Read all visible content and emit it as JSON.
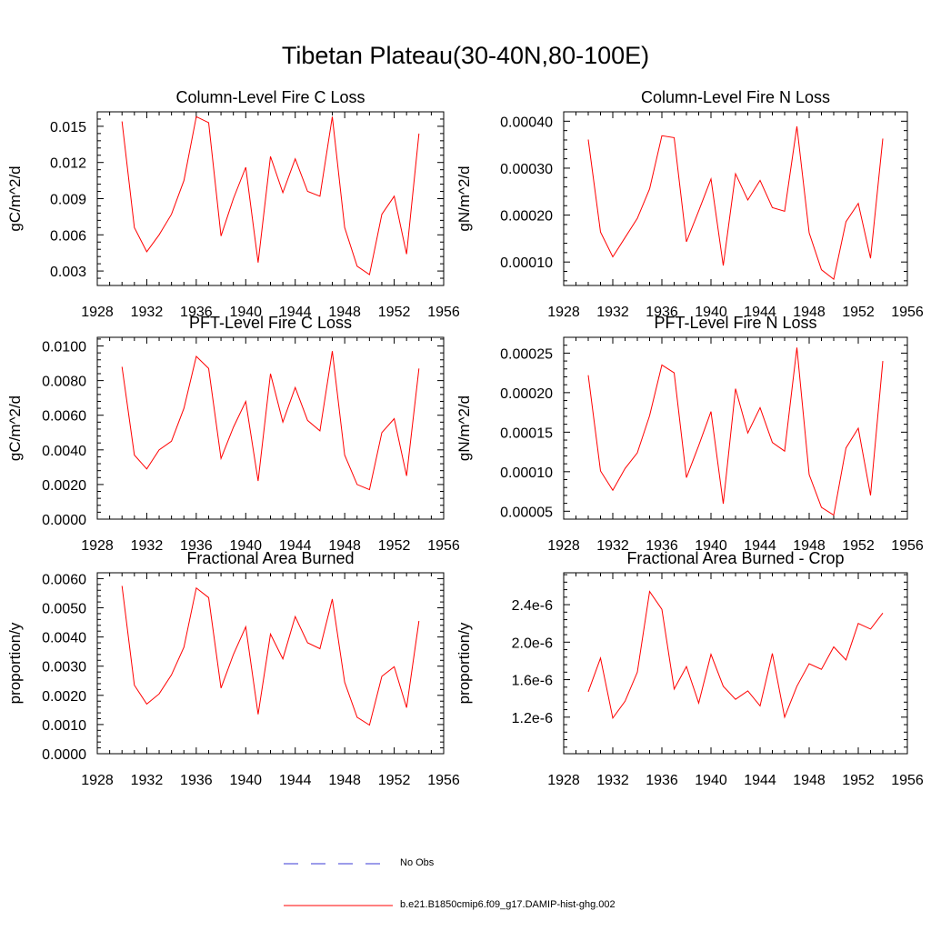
{
  "page": {
    "title": "Tibetan Plateau(30-40N,80-100E)"
  },
  "legend": {
    "items": [
      {
        "label": "No Obs",
        "color": "#3a3ad6",
        "style": "dashed"
      },
      {
        "label": "b.e21.B1850cmip6.f09_g17.DAMIP-hist-ghg.002",
        "color": "#ff0000",
        "style": "solid"
      }
    ]
  },
  "chart_data": [
    {
      "type": "line",
      "title": "Column-Level Fire C Loss",
      "ylabel": "gC/m^2/d",
      "xlim": [
        1928,
        1956
      ],
      "xticks": [
        1928,
        1932,
        1936,
        1940,
        1944,
        1948,
        1952,
        1956
      ],
      "xtick_labels": [
        "1928",
        "1932",
        "1936",
        "1940",
        "1944",
        "1948",
        "1952",
        "1956"
      ],
      "ylim": [
        0.0018,
        0.0162
      ],
      "yticks": [
        0.003,
        0.006,
        0.009,
        0.012,
        0.015
      ],
      "ytick_labels": [
        "0.003",
        "0.006",
        "0.009",
        "0.012",
        "0.015"
      ],
      "color": "#ff0000",
      "x": [
        1930,
        1931,
        1932,
        1933,
        1934,
        1935,
        1936,
        1937,
        1938,
        1939,
        1940,
        1941,
        1942,
        1943,
        1944,
        1945,
        1946,
        1947,
        1948,
        1949,
        1950,
        1951,
        1952,
        1953,
        1954
      ],
      "y": [
        0.0154,
        0.0066,
        0.0046,
        0.006,
        0.0077,
        0.0105,
        0.0158,
        0.0153,
        0.0059,
        0.009,
        0.0116,
        0.0037,
        0.0125,
        0.0095,
        0.0123,
        0.0096,
        0.0092,
        0.0158,
        0.0066,
        0.0034,
        0.0027,
        0.0077,
        0.0092,
        0.0044,
        0.0144
      ]
    },
    {
      "type": "line",
      "title": "Column-Level Fire N Loss",
      "ylabel": "gN/m^2/d",
      "xlim": [
        1928,
        1956
      ],
      "xticks": [
        1928,
        1932,
        1936,
        1940,
        1944,
        1948,
        1952,
        1956
      ],
      "xtick_labels": [
        "1928",
        "1932",
        "1936",
        "1940",
        "1944",
        "1948",
        "1952",
        "1956"
      ],
      "ylim": [
        5e-05,
        0.00042
      ],
      "yticks": [
        0.0001,
        0.0002,
        0.0003,
        0.0004
      ],
      "ytick_labels": [
        "0.00010",
        "0.00020",
        "0.00030",
        "0.00040"
      ],
      "color": "#ff0000",
      "x": [
        1930,
        1931,
        1932,
        1933,
        1934,
        1935,
        1936,
        1937,
        1938,
        1939,
        1940,
        1941,
        1942,
        1943,
        1944,
        1945,
        1946,
        1947,
        1948,
        1949,
        1950,
        1951,
        1952,
        1953,
        1954
      ],
      "y": [
        0.000361,
        0.000164,
        0.000111,
        0.000152,
        0.000193,
        0.000256,
        0.000369,
        0.000365,
        0.000143,
        0.000209,
        0.000277,
        9.24e-05,
        0.000288,
        0.000232,
        0.000274,
        0.000216,
        0.000208,
        0.000389,
        0.000162,
        8.35e-05,
        6.33e-05,
        0.000186,
        0.000225,
        0.000108,
        0.000363
      ]
    },
    {
      "type": "line",
      "title": "PFT-Level Fire C Loss",
      "ylabel": "gC/m^2/d",
      "xlim": [
        1928,
        1956
      ],
      "xticks": [
        1928,
        1932,
        1936,
        1940,
        1944,
        1948,
        1952,
        1956
      ],
      "xtick_labels": [
        "1928",
        "1932",
        "1936",
        "1940",
        "1944",
        "1948",
        "1952",
        "1956"
      ],
      "ylim": [
        0.0,
        0.0105
      ],
      "yticks": [
        0.0,
        0.002,
        0.004,
        0.006,
        0.008,
        0.01
      ],
      "ytick_labels": [
        "0.0000",
        "0.0020",
        "0.0040",
        "0.0060",
        "0.0080",
        "0.0100"
      ],
      "color": "#ff0000",
      "x": [
        1930,
        1931,
        1932,
        1933,
        1934,
        1935,
        1936,
        1937,
        1938,
        1939,
        1940,
        1941,
        1942,
        1943,
        1944,
        1945,
        1946,
        1947,
        1948,
        1949,
        1950,
        1951,
        1952,
        1953,
        1954
      ],
      "y": [
        0.0088,
        0.0037,
        0.0029,
        0.004,
        0.0045,
        0.0064,
        0.0094,
        0.0087,
        0.0035,
        0.0053,
        0.0068,
        0.0022,
        0.0084,
        0.0056,
        0.0076,
        0.0057,
        0.0051,
        0.0097,
        0.0037,
        0.002,
        0.0017,
        0.005,
        0.0058,
        0.0025,
        0.0087
      ]
    },
    {
      "type": "line",
      "title": "PFT-Level Fire N Loss",
      "ylabel": "gN/m^2/d",
      "xlim": [
        1928,
        1956
      ],
      "xticks": [
        1928,
        1932,
        1936,
        1940,
        1944,
        1948,
        1952,
        1956
      ],
      "xtick_labels": [
        "1928",
        "1932",
        "1936",
        "1940",
        "1944",
        "1948",
        "1952",
        "1956"
      ],
      "ylim": [
        4e-05,
        0.00027
      ],
      "yticks": [
        5e-05,
        0.0001,
        0.00015,
        0.0002,
        0.00025
      ],
      "ytick_labels": [
        "0.00005",
        "0.00010",
        "0.00015",
        "0.00020",
        "0.00025"
      ],
      "color": "#ff0000",
      "x": [
        1930,
        1931,
        1932,
        1933,
        1934,
        1935,
        1936,
        1937,
        1938,
        1939,
        1940,
        1941,
        1942,
        1943,
        1944,
        1945,
        1946,
        1947,
        1948,
        1949,
        1950,
        1951,
        1952,
        1953,
        1954
      ],
      "y": [
        0.000222,
        0.000101,
        7.64e-05,
        0.000104,
        0.000124,
        0.000171,
        0.000235,
        0.000225,
        9.25e-05,
        0.000133,
        0.000176,
        5.94e-05,
        0.000205,
        0.000149,
        0.000181,
        0.000137,
        0.000126,
        0.000257,
        9.63e-05,
        5.49e-05,
        4.51e-05,
        0.00013,
        0.000155,
        7.01e-05,
        0.00024
      ]
    },
    {
      "type": "line",
      "title": "Fractional Area Burned",
      "ylabel": "proportion/y",
      "xlim": [
        1928,
        1956
      ],
      "xticks": [
        1928,
        1932,
        1936,
        1940,
        1944,
        1948,
        1952,
        1956
      ],
      "xtick_labels": [
        "1928",
        "1932",
        "1936",
        "1940",
        "1944",
        "1948",
        "1952",
        "1956"
      ],
      "ylim": [
        0.0,
        0.0062
      ],
      "yticks": [
        0.0,
        0.001,
        0.002,
        0.003,
        0.004,
        0.005,
        0.006
      ],
      "ytick_labels": [
        "0.0000",
        "0.0010",
        "0.0020",
        "0.0030",
        "0.0040",
        "0.0050",
        "0.0060"
      ],
      "color": "#ff0000",
      "x": [
        1930,
        1931,
        1932,
        1933,
        1934,
        1935,
        1936,
        1937,
        1938,
        1939,
        1940,
        1941,
        1942,
        1943,
        1944,
        1945,
        1946,
        1947,
        1948,
        1949,
        1950,
        1951,
        1952,
        1953,
        1954
      ],
      "y": [
        0.00575,
        0.00235,
        0.0017,
        0.00205,
        0.0027,
        0.00365,
        0.00568,
        0.00535,
        0.00225,
        0.0034,
        0.00435,
        0.00135,
        0.0041,
        0.00325,
        0.0047,
        0.0038,
        0.0036,
        0.0053,
        0.00245,
        0.00125,
        0.00098,
        0.00265,
        0.00298,
        0.00158,
        0.00455
      ]
    },
    {
      "type": "line",
      "title": "Fractional Area Burned - Crop",
      "ylabel": "proportion/y",
      "xlim": [
        1928,
        1956
      ],
      "xticks": [
        1928,
        1932,
        1936,
        1940,
        1944,
        1948,
        1952,
        1956
      ],
      "xtick_labels": [
        "1928",
        "1932",
        "1936",
        "1940",
        "1944",
        "1948",
        "1952",
        "1956"
      ],
      "ylim": [
        8.1e-07,
        2.74e-06
      ],
      "yticks": [
        1.2e-06,
        1.6e-06,
        2e-06,
        2.4e-06
      ],
      "ytick_labels": [
        "1.2e-6",
        "1.6e-6",
        "2.0e-6",
        "2.4e-6"
      ],
      "color": "#ff0000",
      "x": [
        1930,
        1931,
        1932,
        1933,
        1934,
        1935,
        1936,
        1937,
        1938,
        1939,
        1940,
        1941,
        1942,
        1943,
        1944,
        1945,
        1946,
        1947,
        1948,
        1949,
        1950,
        1951,
        1952,
        1953,
        1954
      ],
      "y": [
        1.47e-06,
        1.83e-06,
        1.19e-06,
        1.37e-06,
        1.68e-06,
        2.54e-06,
        2.35e-06,
        1.5e-06,
        1.74e-06,
        1.35e-06,
        1.87e-06,
        1.53e-06,
        1.39e-06,
        1.48e-06,
        1.32e-06,
        1.88e-06,
        1.2e-06,
        1.53e-06,
        1.77e-06,
        1.71e-06,
        1.95e-06,
        1.81e-06,
        2.2e-06,
        2.14e-06,
        2.31e-06
      ]
    }
  ]
}
